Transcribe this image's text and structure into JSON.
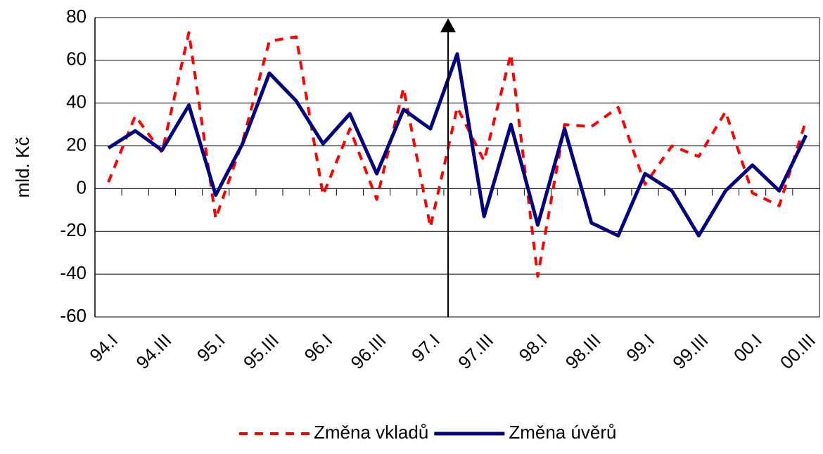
{
  "chart_data": {
    "type": "line",
    "y_label": "mld. Kč",
    "categories": [
      "94.I",
      null,
      "94.III",
      null,
      "95.I",
      null,
      "95.III",
      null,
      "96.I",
      null,
      "96.III",
      null,
      "97.I",
      null,
      "97.III",
      null,
      "98.I",
      null,
      "98.III",
      null,
      "99.I",
      null,
      "99.III",
      null,
      "00.I",
      null,
      "00.III"
    ],
    "series": [
      {
        "name": "Změna vkladů",
        "color": "#ff0000",
        "dashed": true,
        "values": [
          3,
          34,
          17,
          73,
          -14,
          22,
          69,
          71,
          -3,
          28,
          -5,
          47,
          -18,
          38,
          13,
          63,
          -41,
          30,
          29,
          38,
          2,
          20,
          15,
          36,
          -2,
          -8,
          32
        ]
      },
      {
        "name": "Změna úvěrů",
        "color": "#000080",
        "dashed": false,
        "values": [
          19,
          27,
          18,
          39,
          -3,
          21,
          54,
          41,
          21,
          35,
          7,
          37,
          28,
          63,
          -13,
          30,
          -17,
          28,
          -16,
          -22,
          7,
          -1,
          -22,
          -1,
          11,
          -1,
          25
        ]
      }
    ],
    "ylim": [
      -60,
      80
    ],
    "yticks": [
      -60,
      -40,
      -20,
      0,
      20,
      40,
      60,
      80
    ],
    "grid": true
  }
}
